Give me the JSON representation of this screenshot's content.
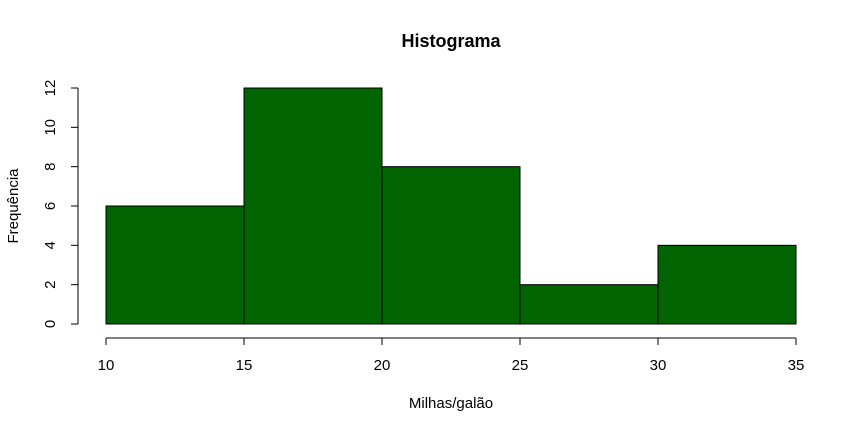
{
  "chart_data": {
    "type": "bar",
    "title": "Histograma",
    "xlabel": "Milhas/galão",
    "ylabel": "Frequência",
    "bins": [
      {
        "start": 10,
        "end": 15,
        "count": 6
      },
      {
        "start": 15,
        "end": 20,
        "count": 12
      },
      {
        "start": 20,
        "end": 25,
        "count": 8
      },
      {
        "start": 25,
        "end": 30,
        "count": 2
      },
      {
        "start": 30,
        "end": 35,
        "count": 4
      }
    ],
    "xticks": [
      10,
      15,
      20,
      25,
      30,
      35
    ],
    "yticks": [
      0,
      2,
      4,
      6,
      8,
      10,
      12
    ],
    "xlim": [
      10,
      35
    ],
    "ylim": [
      0,
      12
    ],
    "bar_color": "#006400",
    "grid": false
  }
}
